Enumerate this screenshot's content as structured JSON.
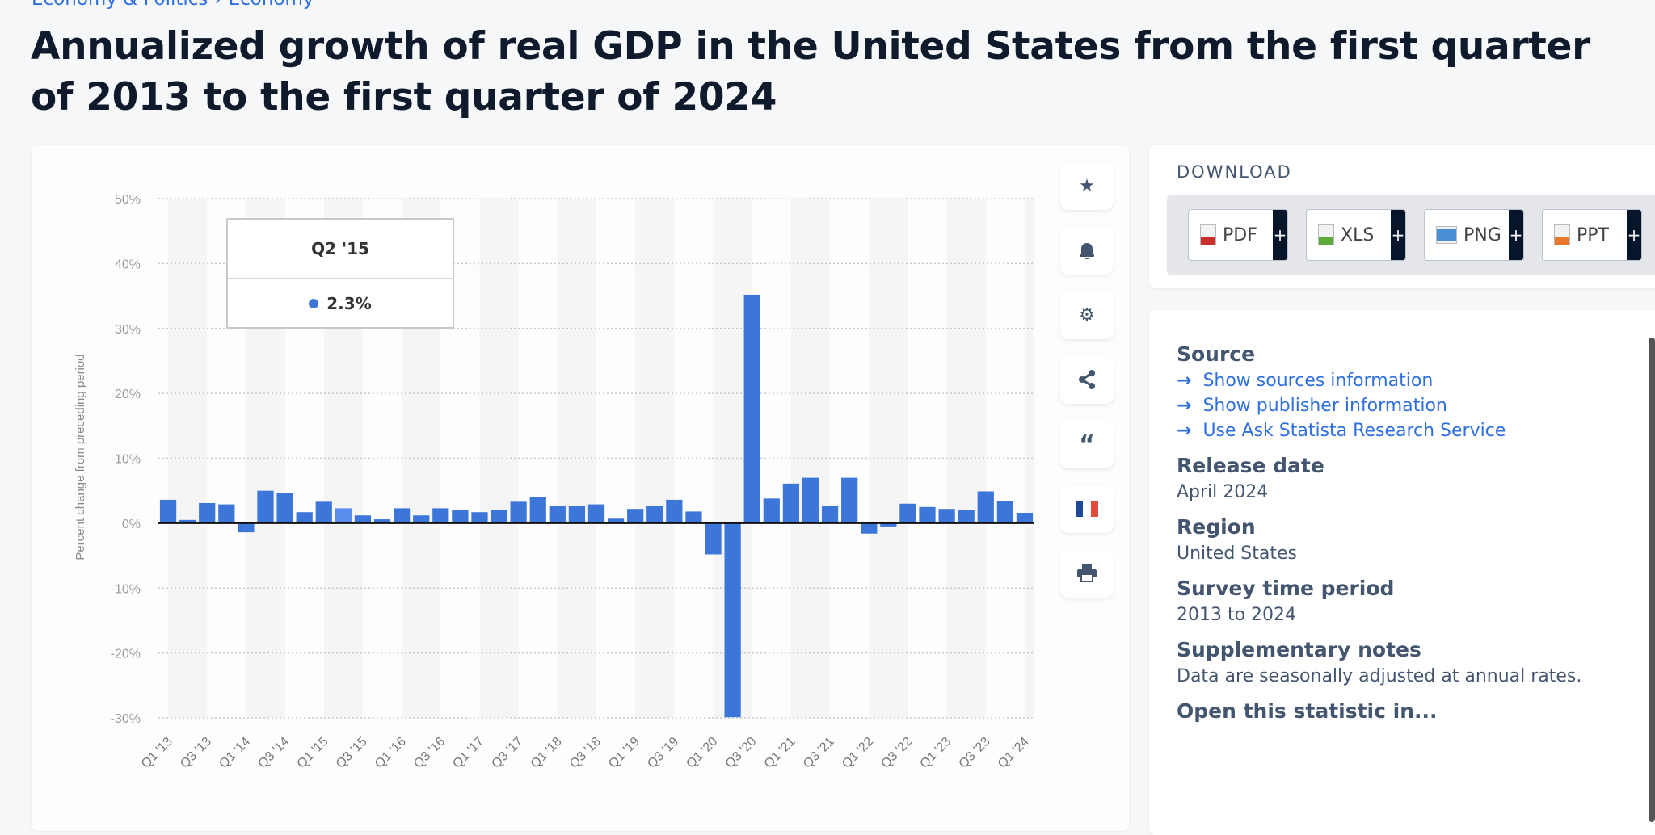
{
  "breadcrumb": [
    "Economy & Politics",
    "›",
    "Economy"
  ],
  "title": "Annualized growth of real GDP in the United States from the first quarter of 2013 to the first quarter of 2024",
  "toolbar": {
    "icons": [
      "star-icon",
      "bell-icon",
      "gear-icon",
      "share-icon",
      "quote-icon",
      "french-flag-icon",
      "print-icon"
    ]
  },
  "tooltip": {
    "label": "Q2 '15",
    "value": "2.3%"
  },
  "download": {
    "title": "DOWNLOAD",
    "buttons": [
      {
        "label": "PDF",
        "plus": "+",
        "color": "#c8302b"
      },
      {
        "label": "XLS",
        "plus": "+",
        "color": "#5fa83a"
      },
      {
        "label": "PNG",
        "plus": "+",
        "color": "#4a90d9"
      },
      {
        "label": "PPT",
        "plus": "+",
        "color": "#e8792b"
      }
    ]
  },
  "info": {
    "source_heading": "Source",
    "links": [
      "Show sources information",
      "Show publisher information",
      "Use Ask Statista Research Service"
    ],
    "release_heading": "Release date",
    "release_value": "April 2024",
    "region_heading": "Region",
    "region_value": "United States",
    "survey_heading": "Survey time period",
    "survey_value": "2013 to 2024",
    "notes_heading": "Supplementary notes",
    "notes_value": "Data are seasonally adjusted at annual rates.",
    "open_heading": "Open this statistic in..."
  },
  "chart_data": {
    "type": "bar",
    "title": "",
    "xlabel": "",
    "ylabel": "Percent change from preceding period",
    "ylim": [
      -30,
      50
    ],
    "yticks": [
      "50%",
      "40%",
      "30%",
      "20%",
      "10%",
      "0%",
      "-10%",
      "-20%",
      "-30%"
    ],
    "ytick_values": [
      50,
      40,
      30,
      20,
      10,
      0,
      -10,
      -20,
      -30
    ],
    "grid": true,
    "bar_color": "#3c76d9",
    "highlight_color": "#5b8def",
    "highlighted": "Q2 '15",
    "categories": [
      "Q1 '13",
      "Q2 '13",
      "Q3 '13",
      "Q4 '13",
      "Q1 '14",
      "Q2 '14",
      "Q3 '14",
      "Q4 '14",
      "Q1 '15",
      "Q2 '15",
      "Q3 '15",
      "Q4 '15",
      "Q1 '16",
      "Q2 '16",
      "Q3 '16",
      "Q4 '16",
      "Q1 '17",
      "Q2 '17",
      "Q3 '17",
      "Q4 '17",
      "Q1 '18",
      "Q2 '18",
      "Q3 '18",
      "Q4 '18",
      "Q1 '19",
      "Q2 '19",
      "Q3 '19",
      "Q4 '19",
      "Q1 '20",
      "Q2 '20",
      "Q3 '20",
      "Q4 '20",
      "Q1 '21",
      "Q2 '21",
      "Q3 '21",
      "Q4 '21",
      "Q1 '22",
      "Q2 '22",
      "Q3 '22",
      "Q4 '22",
      "Q1 '23",
      "Q2 '23",
      "Q3 '23",
      "Q4 '23",
      "Q1 '24"
    ],
    "values": [
      3.6,
      0.5,
      3.1,
      2.9,
      -1.4,
      5.0,
      4.6,
      1.7,
      3.3,
      2.3,
      1.2,
      0.6,
      2.3,
      1.2,
      2.3,
      2.0,
      1.7,
      2.0,
      3.3,
      4.0,
      2.7,
      2.7,
      2.9,
      0.7,
      2.2,
      2.7,
      3.6,
      1.8,
      -4.8,
      -29.9,
      35.2,
      3.8,
      6.1,
      7.0,
      2.7,
      7.0,
      -1.6,
      -0.5,
      3.0,
      2.5,
      2.2,
      2.1,
      4.9,
      3.4,
      1.6
    ]
  }
}
